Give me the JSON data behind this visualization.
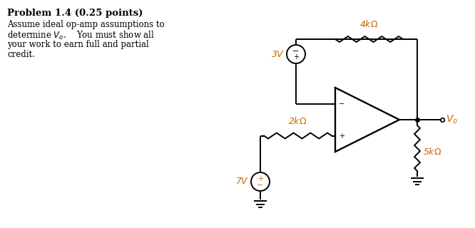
{
  "title": "Problem 1.4 (0.25 points)",
  "text_line1": "Assume ideal op-amp assumptions to",
  "text_line2": "determine $V_o$.    You must show all",
  "text_line3": "your work to earn full and partial",
  "text_line4": "credit.",
  "label_4k": "4k$\\Omega$",
  "label_2k": "2k$\\Omega$",
  "label_5k": "5k$\\Omega$",
  "label_3V": "3V",
  "label_7V": "7V",
  "label_Vo": "$V_o$",
  "color_orange": "#CC6600",
  "color_black": "#000000",
  "bg_color": "#ffffff"
}
